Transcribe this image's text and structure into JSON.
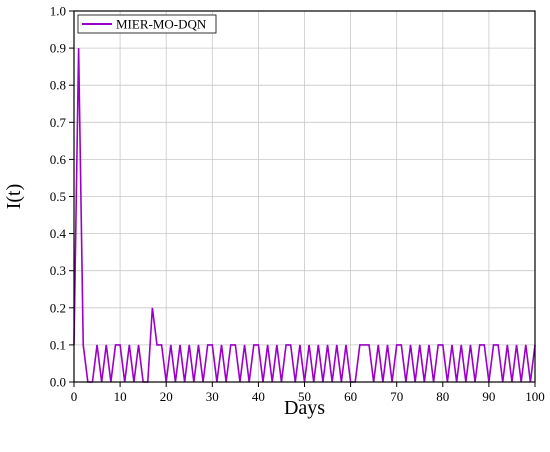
{
  "chart_data": {
    "type": "line",
    "title": "",
    "xlabel": "Days",
    "ylabel": "I(t)",
    "xlim": [
      0,
      100
    ],
    "ylim": [
      0,
      1.0
    ],
    "xticks": [
      0,
      10,
      20,
      30,
      40,
      50,
      60,
      70,
      80,
      90,
      100
    ],
    "yticks": [
      0.0,
      0.1,
      0.2,
      0.3,
      0.4,
      0.5,
      0.6,
      0.7,
      0.8,
      0.9,
      1.0
    ],
    "xtick_labels": [
      "0",
      "10",
      "20",
      "30",
      "40",
      "50",
      "60",
      "70",
      "80",
      "90",
      "100"
    ],
    "ytick_labels": [
      "0.0",
      "0.1",
      "0.2",
      "0.3",
      "0.4",
      "0.5",
      "0.6",
      "0.7",
      "0.8",
      "0.9",
      "1.0"
    ],
    "grid": true,
    "legend_position": "top-left",
    "series": [
      {
        "name": "MIER-MO-DQN",
        "color": "#9b00c8",
        "x": [
          0,
          1,
          2,
          3,
          4,
          5,
          6,
          7,
          8,
          9,
          10,
          11,
          12,
          13,
          14,
          15,
          16,
          17,
          18,
          19,
          20,
          21,
          22,
          23,
          24,
          25,
          26,
          27,
          28,
          29,
          30,
          31,
          32,
          33,
          34,
          35,
          36,
          37,
          38,
          39,
          40,
          41,
          42,
          43,
          44,
          45,
          46,
          47,
          48,
          49,
          50,
          51,
          52,
          53,
          54,
          55,
          56,
          57,
          58,
          59,
          60,
          61,
          62,
          63,
          64,
          65,
          66,
          67,
          68,
          69,
          70,
          71,
          72,
          73,
          74,
          75,
          76,
          77,
          78,
          79,
          80,
          81,
          82,
          83,
          84,
          85,
          86,
          87,
          88,
          89,
          90,
          91,
          92,
          93,
          94,
          95,
          96,
          97,
          98,
          99,
          100
        ],
        "y": [
          0.1,
          0.9,
          0.1,
          0,
          0,
          0.1,
          0,
          0.1,
          0,
          0.1,
          0.1,
          0,
          0.1,
          0,
          0.1,
          0,
          0,
          0.2,
          0.1,
          0.1,
          0,
          0.1,
          0,
          0.1,
          0,
          0.1,
          0,
          0.1,
          0,
          0.1,
          0.1,
          0,
          0.1,
          0,
          0.1,
          0.1,
          0,
          0.1,
          0,
          0.1,
          0.1,
          0,
          0.1,
          0,
          0.1,
          0,
          0.1,
          0.1,
          0,
          0.1,
          0,
          0.1,
          0,
          0.1,
          0,
          0.1,
          0,
          0.1,
          0,
          0.1,
          0,
          0,
          0.1,
          0.1,
          0.1,
          0,
          0.1,
          0,
          0.1,
          0,
          0.1,
          0.1,
          0,
          0.1,
          0,
          0.1,
          0,
          0.1,
          0,
          0.1,
          0.1,
          0,
          0.1,
          0,
          0.1,
          0,
          0.1,
          0,
          0.1,
          0.1,
          0,
          0.1,
          0.1,
          0,
          0.1,
          0,
          0.1,
          0,
          0.1,
          0,
          0.1
        ]
      }
    ]
  }
}
